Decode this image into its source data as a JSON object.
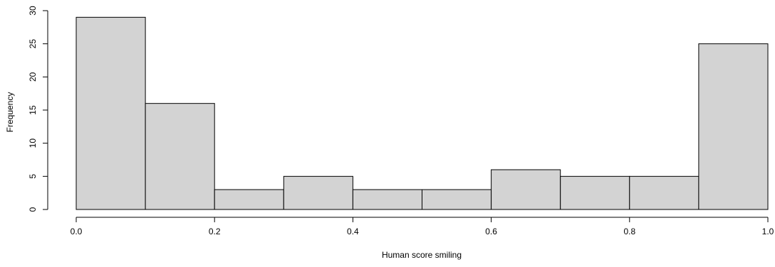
{
  "chart_data": {
    "type": "bar",
    "histogram": true,
    "title": "",
    "xlabel": "Human score smiling",
    "ylabel": "Frequency",
    "bin_edges": [
      0.0,
      0.1,
      0.2,
      0.3,
      0.4,
      0.5,
      0.6,
      0.7,
      0.8,
      0.9,
      1.0
    ],
    "values": [
      29,
      16,
      3,
      5,
      3,
      3,
      6,
      5,
      5,
      25
    ],
    "xlim": [
      0.0,
      1.0
    ],
    "ylim": [
      0,
      30
    ],
    "x_ticks": [
      0.0,
      0.2,
      0.4,
      0.6,
      0.8,
      1.0
    ],
    "x_tick_labels": [
      "0.0",
      "0.2",
      "0.4",
      "0.6",
      "0.8",
      "1.0"
    ],
    "y_ticks": [
      0,
      5,
      10,
      15,
      20,
      25,
      30
    ],
    "y_tick_labels": [
      "0",
      "5",
      "10",
      "15",
      "20",
      "25",
      "30"
    ],
    "grid": false,
    "legend": "none",
    "colors": {
      "bar_fill": "#d3d3d3",
      "bar_stroke": "#000000",
      "axis": "#000000"
    }
  }
}
